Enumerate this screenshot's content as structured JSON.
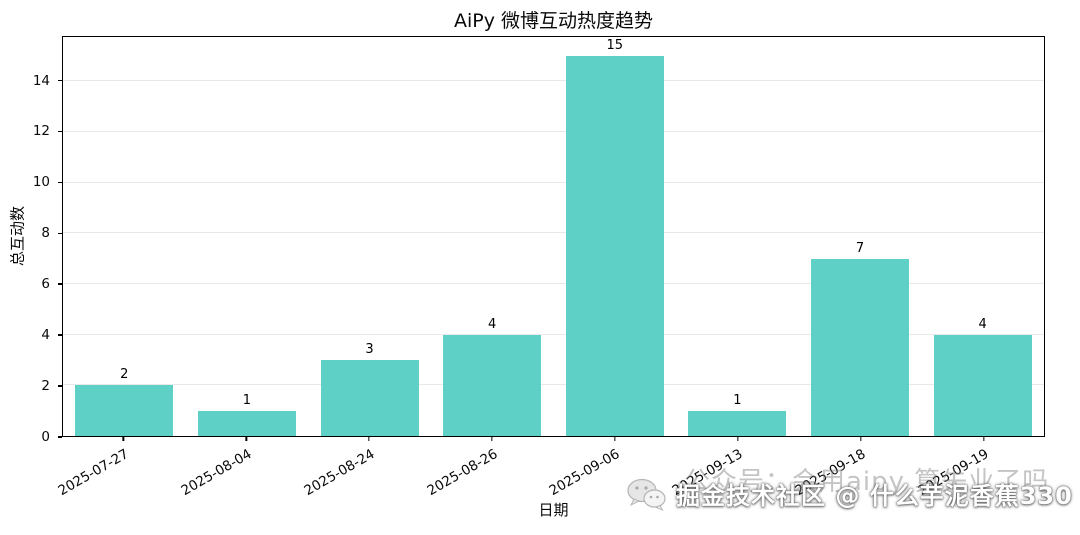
{
  "chart_data": {
    "type": "bar",
    "title": "AiPy 微博互动热度趋势",
    "xlabel": "日期",
    "ylabel": "总互动数",
    "categories": [
      "2025-07-27",
      "2025-08-04",
      "2025-08-24",
      "2025-08-26",
      "2025-09-06",
      "2025-09-13",
      "2025-09-18",
      "2025-09-19"
    ],
    "values": [
      2,
      1,
      3,
      4,
      15,
      1,
      7,
      4
    ],
    "yticks": [
      0,
      2,
      4,
      6,
      8,
      10,
      12,
      14
    ],
    "ylim": [
      0,
      15.75
    ],
    "grid": true,
    "legend": "none",
    "bar_color": "#5ed0c6"
  },
  "watermark": {
    "faint_text": "公众号：会用aipy 算失业了吗",
    "overlay_text": "掘金技术社区 @ 什么芋泥香蕉330",
    "icon": "wechat-icon"
  }
}
